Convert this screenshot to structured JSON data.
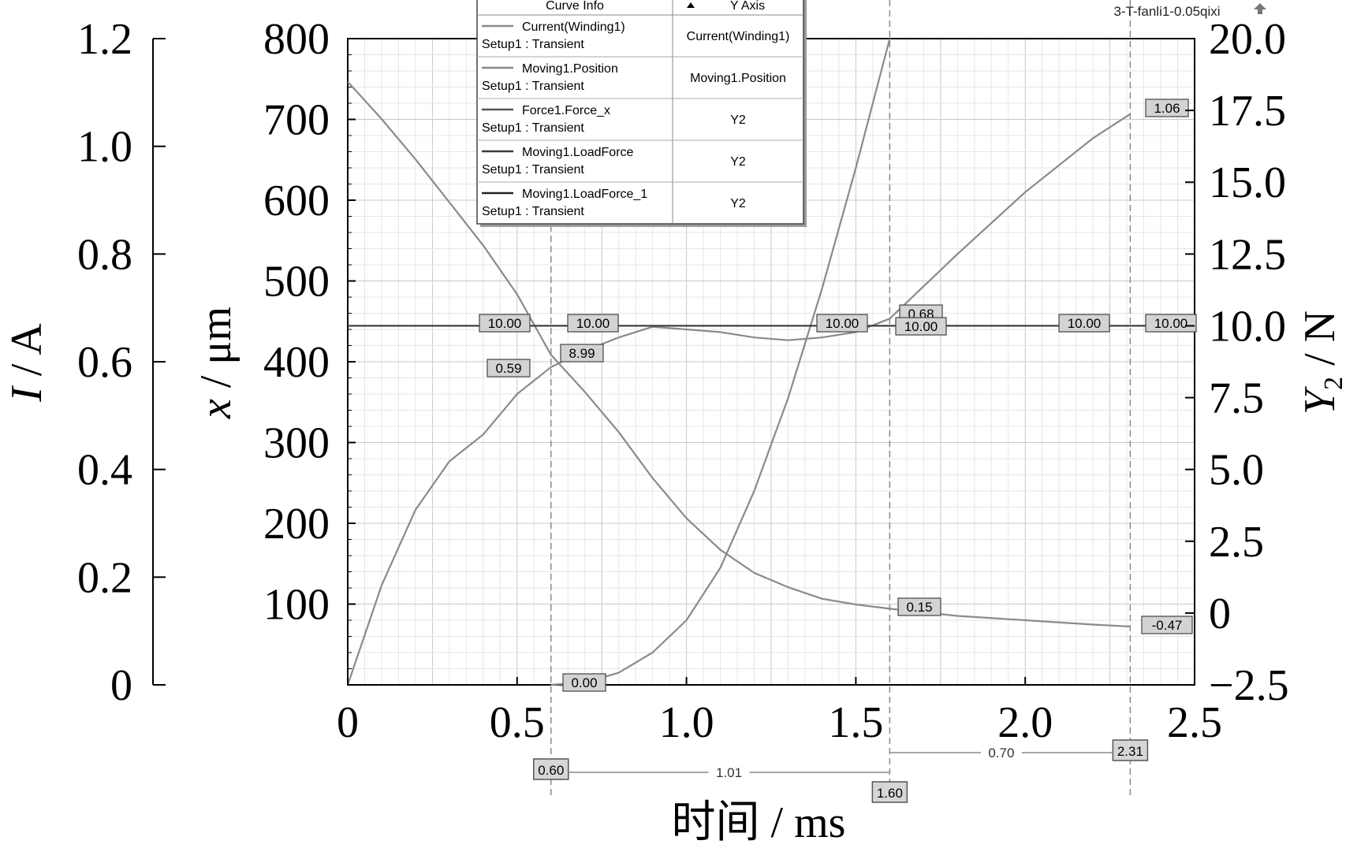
{
  "chart_data": {
    "type": "line",
    "source_label": "3-T-fanli1-0.05qixi",
    "xlabel": "时间 / ms",
    "xlim": [
      0,
      2.5
    ],
    "x_ticks": [
      0,
      0.5,
      1.0,
      1.5,
      2.0,
      2.5
    ],
    "x_tick_labels": [
      "0",
      "0.5",
      "1.0",
      "1.5",
      "2.0",
      "2.5"
    ],
    "axes": {
      "current": {
        "label_main": "I",
        "label_unit": " / A",
        "lim": [
          0,
          1.2
        ],
        "ticks": [
          "0",
          "0.2",
          "0.4",
          "0.6",
          "0.8",
          "1.0",
          "1.2"
        ]
      },
      "position": {
        "label_main": "x",
        "label_unit": " / μm",
        "lim": [
          0,
          800
        ],
        "ticks": [
          "100",
          "200",
          "300",
          "400",
          "500",
          "600",
          "700",
          "800"
        ]
      },
      "force": {
        "label_main": "Y",
        "label_sub": "2",
        "label_unit": " / N",
        "lim": [
          -2.5,
          20.0
        ],
        "ticks": [
          "−2.5",
          "0",
          "2.5",
          "5.0",
          "7.5",
          "10.0",
          "12.5",
          "15.0",
          "17.5",
          "20.0"
        ]
      }
    },
    "legend": {
      "header_curve": "Curve Info",
      "header_axis": "Y Axis",
      "rows": [
        {
          "curve": "Current(Winding1)",
          "setup": "Setup1 : Transient",
          "axis": "Current(Winding1)"
        },
        {
          "curve": "Moving1.Position",
          "setup": "Setup1 : Transient",
          "axis": "Moving1.Position"
        },
        {
          "curve": "Force1.Force_x",
          "setup": "Setup1 : Transient",
          "axis": "Y2"
        },
        {
          "curve": "Moving1.LoadForce",
          "setup": "Setup1 : Transient",
          "axis": "Y2"
        },
        {
          "curve": "Moving1.LoadForce_1",
          "setup": "Setup1 : Transient",
          "axis": "Y2"
        }
      ]
    },
    "series": [
      {
        "axis": "current",
        "color": "#8a8a8a",
        "x": [
          0,
          0.1,
          0.2,
          0.3,
          0.4,
          0.5,
          0.6,
          0.7,
          0.8,
          0.9,
          1.0,
          1.1,
          1.2,
          1.3,
          1.4,
          1.5,
          1.6,
          1.8,
          2.0,
          2.2,
          2.31
        ],
        "y": [
          0,
          0.185,
          0.325,
          0.415,
          0.465,
          0.54,
          0.59,
          0.62,
          0.645,
          0.665,
          0.66,
          0.655,
          0.645,
          0.64,
          0.645,
          0.655,
          0.68,
          0.8,
          0.915,
          1.015,
          1.06
        ]
      },
      {
        "axis": "position",
        "color": "#8a8a8a",
        "x": [
          0.6,
          0.7,
          0.8,
          0.9,
          1.0,
          1.1,
          1.2,
          1.3,
          1.4,
          1.5,
          1.6
        ],
        "y": [
          0,
          3,
          15,
          40,
          80,
          145,
          240,
          355,
          490,
          640,
          800
        ]
      },
      {
        "axis": "force",
        "color": "#8a8a8a",
        "x": [
          0,
          0.1,
          0.2,
          0.3,
          0.4,
          0.5,
          0.6,
          0.7,
          0.8,
          0.9,
          1.0,
          1.1,
          1.2,
          1.3,
          1.4,
          1.5,
          1.6,
          1.8,
          2.0,
          2.2,
          2.31
        ],
        "y": [
          18.5,
          17.2,
          15.8,
          14.3,
          12.8,
          11.1,
          8.99,
          7.7,
          6.3,
          4.7,
          3.3,
          2.2,
          1.4,
          0.9,
          0.5,
          0.3,
          0.15,
          -0.1,
          -0.25,
          -0.4,
          -0.47
        ]
      },
      {
        "axis": "force",
        "color": "#555555",
        "x": [
          0,
          2.5
        ],
        "y": [
          10.0,
          10.0
        ]
      },
      {
        "axis": "force",
        "color": "#3a3a3a",
        "x": [
          0,
          2.5
        ],
        "y": [
          10.0,
          10.0
        ]
      }
    ],
    "markers": [
      {
        "x": 0.6,
        "label": "0.60"
      },
      {
        "x": 1.6,
        "label": "1.60"
      },
      {
        "x": 2.31,
        "label": "2.31"
      }
    ],
    "deltas": [
      {
        "label": "1.01"
      },
      {
        "label": "0.70"
      }
    ],
    "annotations": [
      {
        "label": "10.00"
      },
      {
        "label": "10.00"
      },
      {
        "label": "0.59"
      },
      {
        "label": "8.99"
      },
      {
        "label": "0.00"
      },
      {
        "label": "10.00"
      },
      {
        "label": "0.68"
      },
      {
        "label": "10.00"
      },
      {
        "label": "0.15"
      },
      {
        "label": "10.00"
      },
      {
        "label": "10.00"
      },
      {
        "label": "1.06"
      },
      {
        "label": "-0.47"
      }
    ]
  }
}
